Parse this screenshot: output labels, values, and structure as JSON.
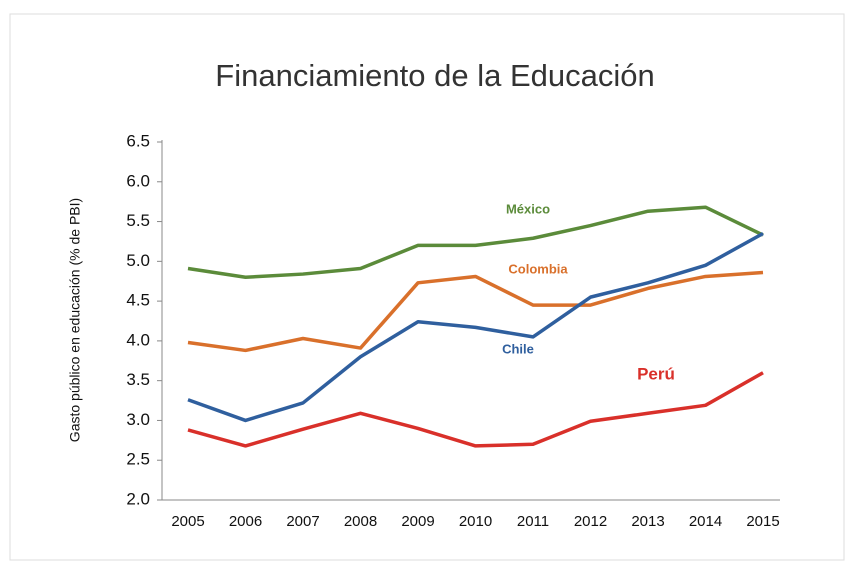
{
  "chart_data": {
    "type": "line",
    "title": "Financiamiento de la Educación",
    "y_label": "Gasto público en educación (% de PBI)",
    "categories": [
      "2005",
      "2006",
      "2007",
      "2008",
      "2009",
      "2010",
      "2011",
      "2012",
      "2013",
      "2014",
      "2015"
    ],
    "series": [
      {
        "name": "México",
        "color": "#5b8b3a",
        "values": [
          4.91,
          4.8,
          4.84,
          4.91,
          5.2,
          5.2,
          5.29,
          5.45,
          5.63,
          5.68,
          5.33
        ]
      },
      {
        "name": "Colombia",
        "color": "#d9702b",
        "values": [
          3.98,
          3.88,
          4.03,
          3.91,
          4.73,
          4.81,
          4.45,
          4.45,
          4.66,
          4.81,
          4.86
        ]
      },
      {
        "name": "Chile",
        "color": "#2f5f9e",
        "values": [
          3.26,
          3.0,
          3.22,
          3.8,
          4.24,
          4.17,
          4.05,
          4.55,
          4.73,
          4.95,
          5.35
        ]
      },
      {
        "name": "Perú",
        "color": "#d9302a",
        "values": [
          2.88,
          2.68,
          2.89,
          3.09,
          2.9,
          2.68,
          2.7,
          2.99,
          3.09,
          3.19,
          3.6
        ]
      }
    ],
    "ylim": [
      2,
      6.5
    ],
    "yticks": [
      {
        "value": 2,
        "label": "2.0"
      },
      {
        "value": 2.5,
        "label": "2.5"
      },
      {
        "value": 3,
        "label": "3.0"
      },
      {
        "value": 3.5,
        "label": "3.5"
      },
      {
        "value": 4,
        "label": "4.0"
      },
      {
        "value": 4.5,
        "label": "4.5"
      },
      {
        "value": 5,
        "label": "5.0"
      },
      {
        "value": 5.5,
        "label": "5.5"
      },
      {
        "value": 6,
        "label": "6.0"
      },
      {
        "value": 6.5,
        "label": "6.5"
      }
    ]
  }
}
